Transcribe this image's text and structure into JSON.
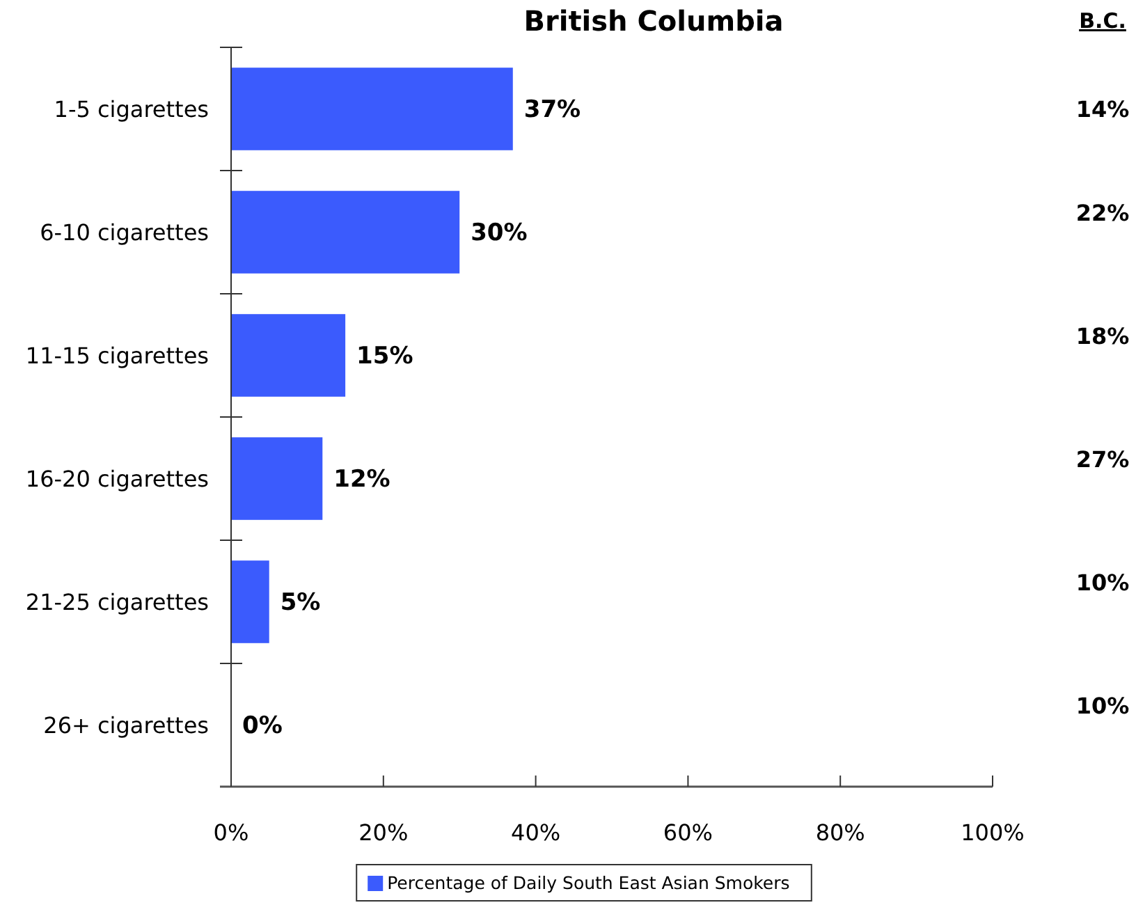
{
  "chart_data": {
    "type": "bar",
    "orientation": "horizontal",
    "title": "British Columbia",
    "categories": [
      "1-5 cigarettes",
      "6-10 cigarettes",
      "11-15 cigarettes",
      "16-20 cigarettes",
      "21-25 cigarettes",
      "26+ cigarettes"
    ],
    "series": [
      {
        "name": "Percentage of Daily South East Asian Smokers",
        "color": "#3b5bfd",
        "values": [
          37,
          30,
          15,
          12,
          5,
          0
        ],
        "value_labels": [
          "37%",
          "30%",
          "15%",
          "12%",
          "5%",
          "0%"
        ]
      }
    ],
    "xlim": [
      0,
      100
    ],
    "xticks": [
      {
        "value": 0,
        "label": "0%"
      },
      {
        "value": 20,
        "label": "20%"
      },
      {
        "value": 40,
        "label": "40%"
      },
      {
        "value": 60,
        "label": "60%"
      },
      {
        "value": 80,
        "label": "80%"
      },
      {
        "value": 100,
        "label": "100%"
      }
    ],
    "legend": "bottom",
    "annotations": [
      "B.C.",
      "14%",
      "22%",
      "18%",
      "27%",
      "10%",
      "10%"
    ]
  }
}
